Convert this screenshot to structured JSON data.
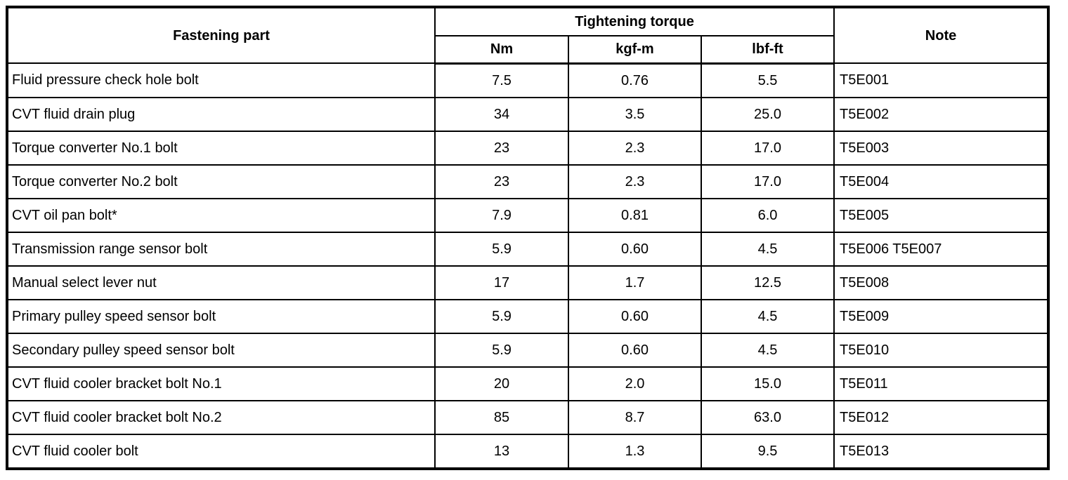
{
  "table": {
    "headers": {
      "fastening_part": "Fastening part",
      "tightening_torque": "Tightening torque",
      "units": [
        "Nm",
        "kgf-m",
        "lbf-ft"
      ],
      "note": "Note"
    },
    "rows": [
      {
        "part": "Fluid pressure check hole bolt",
        "nm": "7.5",
        "kgf_m": "0.76",
        "lbf_ft": "5.5",
        "note": "T5E001"
      },
      {
        "part": "CVT fluid drain plug",
        "nm": "34",
        "kgf_m": "3.5",
        "lbf_ft": "25.0",
        "note": "T5E002"
      },
      {
        "part": "Torque converter No.1 bolt",
        "nm": "23",
        "kgf_m": "2.3",
        "lbf_ft": "17.0",
        "note": "T5E003"
      },
      {
        "part": "Torque converter No.2 bolt",
        "nm": "23",
        "kgf_m": "2.3",
        "lbf_ft": "17.0",
        "note": "T5E004"
      },
      {
        "part": "CVT oil pan bolt*",
        "nm": "7.9",
        "kgf_m": "0.81",
        "lbf_ft": "6.0",
        "note": "T5E005"
      },
      {
        "part": "Transmission range sensor bolt",
        "nm": "5.9",
        "kgf_m": "0.60",
        "lbf_ft": "4.5",
        "note": "T5E006 T5E007"
      },
      {
        "part": "Manual select lever nut",
        "nm": "17",
        "kgf_m": "1.7",
        "lbf_ft": "12.5",
        "note": "T5E008"
      },
      {
        "part": "Primary pulley speed sensor bolt",
        "nm": "5.9",
        "kgf_m": "0.60",
        "lbf_ft": "4.5",
        "note": "T5E009"
      },
      {
        "part": "Secondary pulley speed sensor bolt",
        "nm": "5.9",
        "kgf_m": "0.60",
        "lbf_ft": "4.5",
        "note": "T5E010"
      },
      {
        "part": "CVT fluid cooler bracket bolt No.1",
        "nm": "20",
        "kgf_m": "2.0",
        "lbf_ft": "15.0",
        "note": "T5E011"
      },
      {
        "part": "CVT fluid cooler bracket bolt No.2",
        "nm": "85",
        "kgf_m": "8.7",
        "lbf_ft": "63.0",
        "note": "T5E012"
      },
      {
        "part": "CVT fluid cooler bolt",
        "nm": "13",
        "kgf_m": "1.3",
        "lbf_ft": "9.5",
        "note": "T5E013"
      }
    ],
    "colors": {
      "border": "#000000",
      "background": "#ffffff",
      "text": "#000000"
    }
  }
}
